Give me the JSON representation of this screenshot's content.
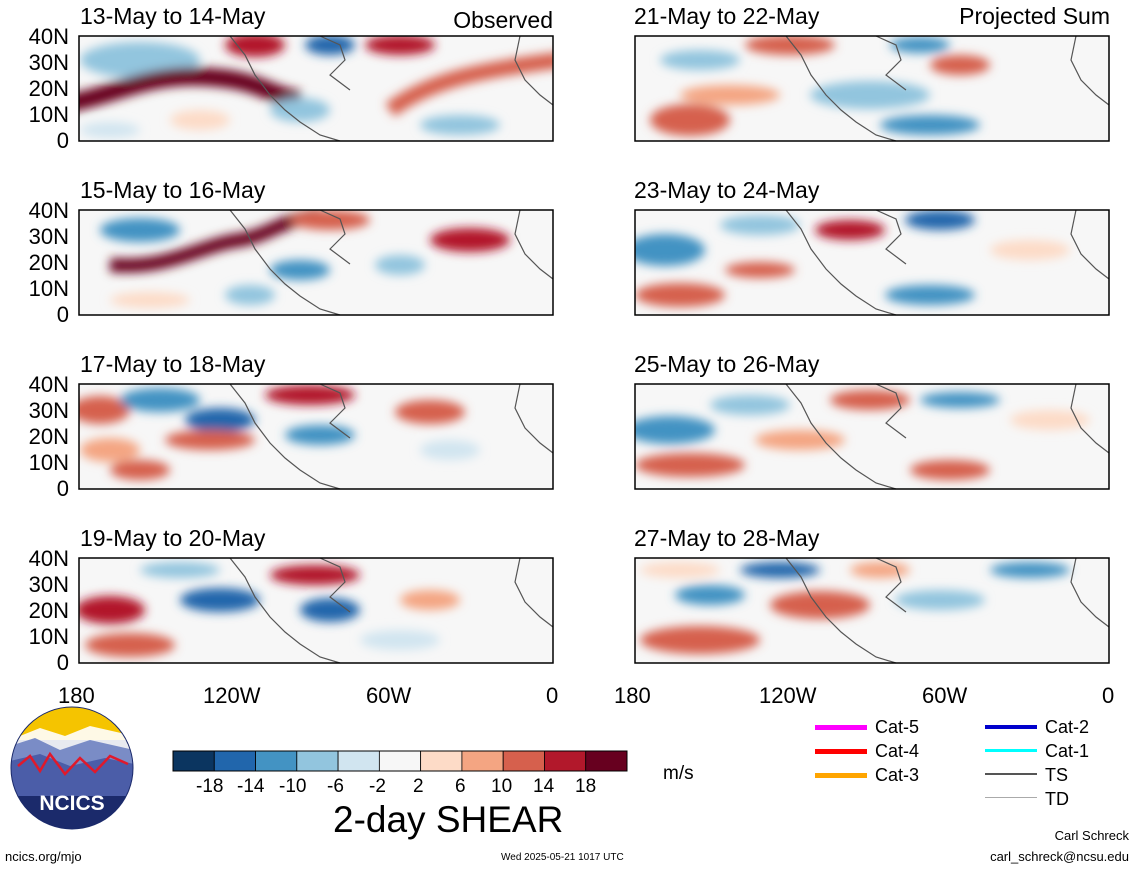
{
  "panels_left": [
    {
      "title": "13-May to 14-May",
      "tag": "Observed"
    },
    {
      "title": "15-May to 16-May"
    },
    {
      "title": "17-May to 18-May"
    },
    {
      "title": "19-May to 20-May"
    }
  ],
  "panels_right": [
    {
      "title": "21-May to 22-May",
      "tag": "Projected Sum"
    },
    {
      "title": "23-May to 24-May"
    },
    {
      "title": "25-May to 26-May"
    },
    {
      "title": "27-May to 28-May"
    }
  ],
  "y_ticks": [
    "40N",
    "30N",
    "20N",
    "10N",
    "0"
  ],
  "x_ticks": [
    "180",
    "120W",
    "60W",
    "0"
  ],
  "colorbar": {
    "title": "2-day SHEAR",
    "units": "m/s",
    "tick_labels": [
      "-18",
      "-14",
      "-10",
      "-6",
      "-2",
      "2",
      "6",
      "10",
      "14",
      "18"
    ],
    "colors": [
      "#0b3560",
      "#2166ac",
      "#4393c3",
      "#92c5de",
      "#d1e5f0",
      "#f7f7f7",
      "#fddbc7",
      "#f4a582",
      "#d6604d",
      "#b2182b",
      "#67001f"
    ]
  },
  "legend": [
    {
      "label": "Cat-5",
      "color": "#ff00ff"
    },
    {
      "label": "Cat-4",
      "color": "#ff0000"
    },
    {
      "label": "Cat-3",
      "color": "#ffa500"
    },
    {
      "label": "Cat-2",
      "color": "#0000cc"
    },
    {
      "label": "Cat-1",
      "color": "#00ffff"
    },
    {
      "label": "TS",
      "color": "#555555"
    },
    {
      "label": "TD",
      "color": "#aaaaaa"
    }
  ],
  "logo": {
    "text": "NCICS"
  },
  "footer": {
    "site": "ncics.org/mjo",
    "timestamp": "Wed 2025-05-21 1017 UTC",
    "author": "Carl Schreck",
    "email": "carl_schreck@ncsu.edu"
  }
}
